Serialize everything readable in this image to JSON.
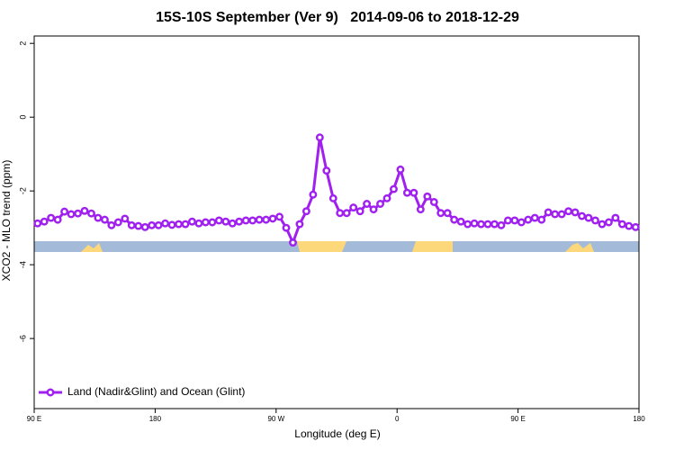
{
  "chart_data": {
    "type": "line",
    "title": "15S-10S September (Ver 9)   2014-09-06 to 2018-12-29",
    "x_label": "Longitude (deg E)",
    "y_label": "XCO2 - MLO trend (ppm)",
    "xlim": [
      90,
      540
    ],
    "ylim": [
      -7.9,
      2.2
    ],
    "xticks": [
      {
        "value": 90,
        "label": "90 E"
      },
      180,
      {
        "value": 270,
        "label": "90 W"
      },
      {
        "value": 360,
        "label": "0"
      },
      {
        "value": 450,
        "label": "90 E"
      },
      {
        "value": 540,
        "label": "180"
      }
    ],
    "yticks": [
      2,
      0,
      -2,
      -4,
      -6
    ],
    "legend": "bottom-left",
    "series": [
      {
        "name": "Land (Nadir&Glint) and Ocean (Glint)",
        "color": "#a020f0",
        "x": [
          92.5,
          97.5,
          102.5,
          107.5,
          112.5,
          117.5,
          122.5,
          127.5,
          132.5,
          137.5,
          142.5,
          147.5,
          152.5,
          157.5,
          162.5,
          167.5,
          172.5,
          177.5,
          182.5,
          187.5,
          192.5,
          197.5,
          202.5,
          207.5,
          212.5,
          217.5,
          222.5,
          227.5,
          232.5,
          237.5,
          242.5,
          247.5,
          252.5,
          257.5,
          262.5,
          267.5,
          272.5,
          277.5,
          282.5,
          287.5,
          292.5,
          297.5,
          302.5,
          307.5,
          312.5,
          317.5,
          322.5,
          327.5,
          332.5,
          337.5,
          342.5,
          347.5,
          352.5,
          357.5,
          362.5,
          367.5,
          372.5,
          377.5,
          382.5,
          387.5,
          392.5,
          397.5,
          402.5,
          407.5,
          412.5,
          417.5,
          422.5,
          427.5,
          432.5,
          437.5,
          442.5,
          447.5,
          452.5,
          457.5,
          462.5,
          467.5,
          472.5,
          477.5,
          482.5,
          487.5,
          492.5,
          497.5,
          502.5,
          507.5,
          512.5,
          517.5,
          522.5,
          527.5,
          532.5,
          537.5
        ],
        "values": [
          -2.88,
          -2.83,
          -2.73,
          -2.78,
          -2.56,
          -2.63,
          -2.61,
          -2.54,
          -2.61,
          -2.73,
          -2.78,
          -2.93,
          -2.85,
          -2.75,
          -2.93,
          -2.95,
          -2.98,
          -2.93,
          -2.93,
          -2.88,
          -2.92,
          -2.9,
          -2.9,
          -2.83,
          -2.88,
          -2.85,
          -2.85,
          -2.8,
          -2.83,
          -2.88,
          -2.83,
          -2.8,
          -2.8,
          -2.78,
          -2.78,
          -2.75,
          -2.7,
          -3.0,
          -3.4,
          -2.9,
          -2.55,
          -2.1,
          -0.55,
          -1.45,
          -2.2,
          -2.6,
          -2.6,
          -2.45,
          -2.55,
          -2.35,
          -2.5,
          -2.35,
          -2.2,
          -1.95,
          -1.42,
          -2.05,
          -2.05,
          -2.5,
          -2.15,
          -2.3,
          -2.6,
          -2.6,
          -2.78,
          -2.83,
          -2.9,
          -2.88,
          -2.9,
          -2.9,
          -2.9,
          -2.93,
          -2.8,
          -2.8,
          -2.85,
          -2.78,
          -2.73,
          -2.78,
          -2.58,
          -2.63,
          -2.63,
          -2.55,
          -2.58,
          -2.68,
          -2.73,
          -2.8,
          -2.9,
          -2.85,
          -2.73,
          -2.9,
          -2.95,
          -2.98
        ]
      }
    ]
  }
}
